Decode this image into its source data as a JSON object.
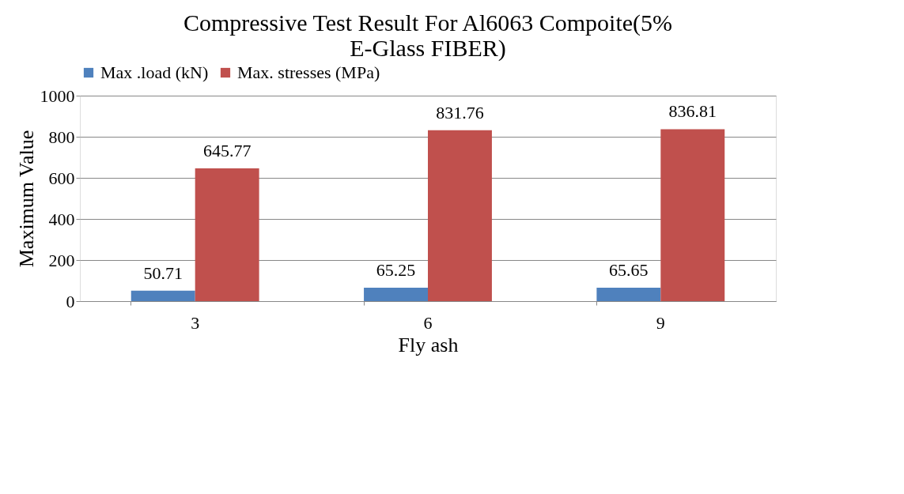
{
  "chart_data": {
    "type": "bar",
    "title": "Compressive Test Result For Al6063 Compoite(5% E-Glass FIBER)",
    "xlabel": "Fly ash",
    "ylabel": "Maximum Value",
    "categories": [
      "3",
      "6",
      "9"
    ],
    "series": [
      {
        "name": "Max .load (kN)",
        "color": "#4f81bd",
        "values": [
          50.71,
          65.25,
          65.65
        ]
      },
      {
        "name": "Max. stresses (MPa)",
        "color": "#c0504d",
        "values": [
          645.77,
          831.76,
          836.81
        ]
      }
    ],
    "ylim": [
      0,
      1000
    ],
    "yticks": [
      0,
      200,
      400,
      600,
      800,
      1000
    ],
    "grid": "y",
    "legend": "top",
    "data_labels": true
  }
}
